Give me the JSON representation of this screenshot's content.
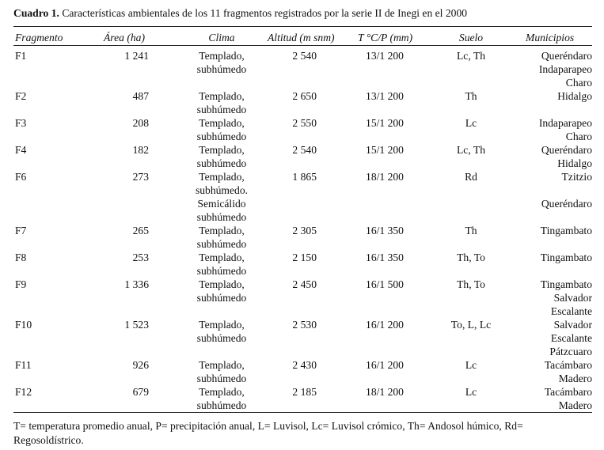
{
  "caption": {
    "label": "Cuadro 1.",
    "text": " Características ambientales de los 11 fragmentos registrados por la serie II de Inegi en el 2000"
  },
  "headers": {
    "fragmento": "Fragmento",
    "area": "Área (ha)",
    "clima": "Clima",
    "altitud": "Altitud (m snm)",
    "tp": "T °C/P (mm)",
    "suelo": "Suelo",
    "municipios": "Municipios"
  },
  "rows": [
    {
      "fragmento": "F1",
      "area": "1 241",
      "clima": [
        "Templado,",
        "subhúmedo"
      ],
      "altitud": "2 540",
      "tp": "13/1 200",
      "suelo": "Lc, Th",
      "municipios": [
        "Queréndaro",
        "Indaparapeo",
        "Charo"
      ]
    },
    {
      "fragmento": "F2",
      "area": "487",
      "clima": [
        "Templado,",
        "subhúmedo"
      ],
      "altitud": "2 650",
      "tp": "13/1 200",
      "suelo": "Th",
      "municipios": [
        "Hidalgo"
      ]
    },
    {
      "fragmento": "F3",
      "area": "208",
      "clima": [
        "Templado,",
        "subhúmedo"
      ],
      "altitud": "2 550",
      "tp": "15/1 200",
      "suelo": "Lc",
      "municipios": [
        "Indaparapeo",
        "Charo"
      ]
    },
    {
      "fragmento": "F4",
      "area": "182",
      "clima": [
        "Templado,",
        "subhúmedo"
      ],
      "altitud": "2 540",
      "tp": "15/1 200",
      "suelo": "Lc, Th",
      "municipios": [
        "Queréndaro",
        "Hidalgo"
      ]
    },
    {
      "fragmento": "F6",
      "area": "273",
      "clima": [
        "Templado,",
        "subhúmedo.",
        "Semicálido",
        "subhúmedo"
      ],
      "altitud": "1 865",
      "tp": "18/1 200",
      "suelo": "Rd",
      "municipios": [
        "Tzitzio",
        "",
        "Queréndaro"
      ]
    },
    {
      "fragmento": "F7",
      "area": "265",
      "clima": [
        "Templado,",
        "subhúmedo"
      ],
      "altitud": "2 305",
      "tp": "16/1 350",
      "suelo": "Th",
      "municipios": [
        "Tingambato"
      ]
    },
    {
      "fragmento": "F8",
      "area": "253",
      "clima": [
        "Templado,",
        "subhúmedo"
      ],
      "altitud": "2 150",
      "tp": "16/1 350",
      "suelo": "Th, To",
      "municipios": [
        "Tingambato"
      ]
    },
    {
      "fragmento": "F9",
      "area": "1 336",
      "clima": [
        "Templado,",
        "subhúmedo"
      ],
      "altitud": "2 450",
      "tp": "16/1 500",
      "suelo": "Th, To",
      "municipios": [
        "Tingambato",
        "Salvador",
        "Escalante"
      ]
    },
    {
      "fragmento": "F10",
      "area": "1 523",
      "clima": [
        "Templado,",
        "subhúmedo"
      ],
      "altitud": "2 530",
      "tp": "16/1 200",
      "suelo": "To, L, Lc",
      "municipios": [
        "Salvador",
        "Escalante",
        "Pátzcuaro"
      ]
    },
    {
      "fragmento": "F11",
      "area": "926",
      "clima": [
        "Templado,",
        "subhúmedo"
      ],
      "altitud": "2 430",
      "tp": "16/1 200",
      "suelo": "Lc",
      "municipios": [
        "Tacámbaro",
        "Madero"
      ]
    },
    {
      "fragmento": "F12",
      "area": "679",
      "clima": [
        "Templado,",
        "subhúmedo"
      ],
      "altitud": "2 185",
      "tp": "18/1 200",
      "suelo": "Lc",
      "municipios": [
        "Tacámbaro",
        "Madero"
      ]
    }
  ],
  "footnote": "T= temperatura promedio anual, P= precipitación anual, L= Luvisol, Lc= Luvisol crómico, Th= Andosol húmico, Rd= Regosoldístrico."
}
